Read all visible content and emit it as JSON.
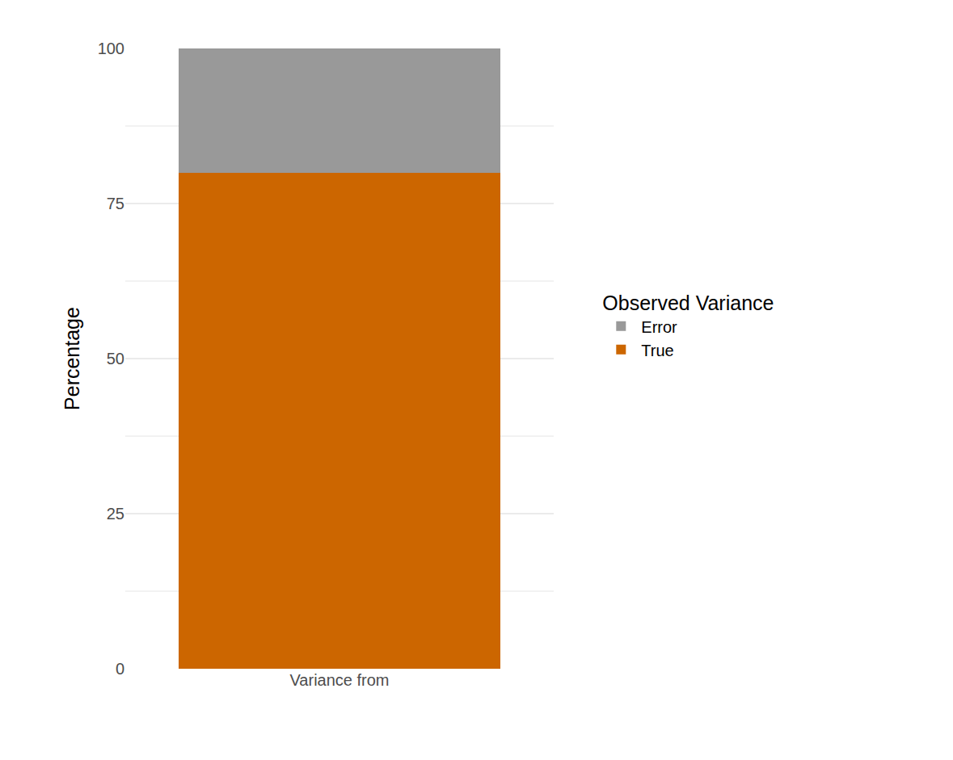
{
  "chart_data": {
    "type": "bar",
    "stacked": true,
    "categories": [
      "Variance from"
    ],
    "series": [
      {
        "name": "True",
        "color": "#cc6600",
        "values": [
          80
        ]
      },
      {
        "name": "Error",
        "color": "#999999",
        "values": [
          20
        ]
      }
    ],
    "y_label": "Percentage",
    "legend_title": "Observed Variance",
    "legend": "right",
    "ylim": [
      0,
      100
    ],
    "yticks": [
      0,
      25,
      50,
      75,
      100
    ],
    "grid": true
  }
}
